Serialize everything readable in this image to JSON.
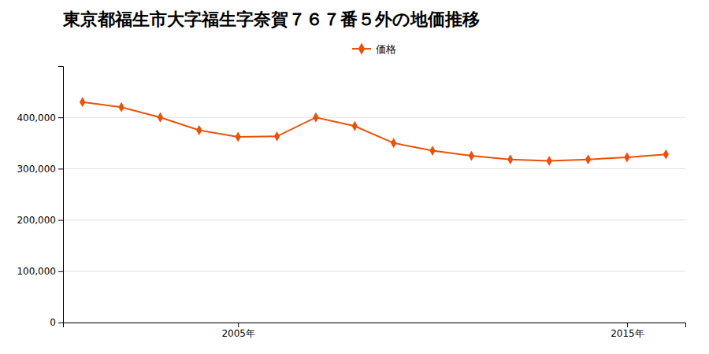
{
  "chart_data": {
    "type": "line",
    "title": "東京都福生市大字福生字奈賀７６７番５外の地価推移",
    "x": [
      2001,
      2002,
      2003,
      2004,
      2005,
      2006,
      2007,
      2008,
      2009,
      2010,
      2011,
      2012,
      2013,
      2014,
      2015,
      2016
    ],
    "series": [
      {
        "name": "価格",
        "color": "#e8520a",
        "marker": "diamond",
        "values": [
          430000,
          420000,
          400000,
          375000,
          362000,
          363000,
          400000,
          383000,
          350000,
          335000,
          325000,
          318000,
          315000,
          318000,
          322000,
          328000
        ]
      }
    ],
    "xlim": [
      2000.5,
      2016.5
    ],
    "xticks": [
      {
        "value": 2005,
        "label": "2005年"
      },
      {
        "value": 2015,
        "label": "2015年"
      }
    ],
    "ylim": [
      0,
      500000
    ],
    "yticks": [
      0,
      {
        "value": 100000,
        "label": "100,000"
      },
      {
        "value": 200000,
        "label": "200,000"
      },
      {
        "value": 300000,
        "label": "300,000"
      },
      {
        "value": 400000,
        "label": "400,000"
      }
    ],
    "grid": true,
    "legend": "top"
  }
}
